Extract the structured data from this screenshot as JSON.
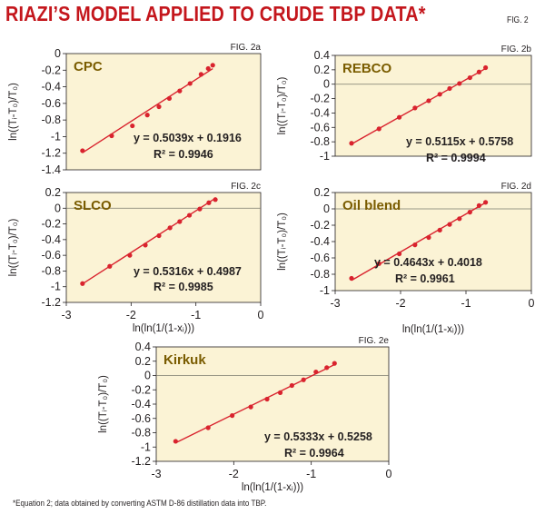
{
  "header": {
    "title": "RIAZI’S MODEL APPLIED TO CRUDE TBP DATA*",
    "fig_label": "FIG. 2"
  },
  "footnote": "*Equation 2; data obtained by converting ASTM D-86 distillation data into TBP.",
  "colors": {
    "data": "#d9232e",
    "plot_background": "#fbf3d5",
    "zero_line": "#7a7a6c",
    "panel_label": "#7a5c00"
  },
  "chart_data": [
    {
      "type": "scatter",
      "panel_tag": "FIG. 2a",
      "name": "CPC",
      "xlabel": "",
      "ylabel": "ln((Tᵢ-T₀)/T₀)",
      "xlim": [
        -3,
        0
      ],
      "ylim": [
        -1.4,
        0
      ],
      "yticks": [
        -1.4,
        -1.2,
        -1,
        -0.8,
        -0.6,
        -0.4,
        -0.2,
        0
      ],
      "xticks": [],
      "grid": false,
      "equation": "y = 0.5039x + 0.1916",
      "r2": "R² = 0.9946",
      "slope": 0.5039,
      "intercept": 0.1916,
      "x": [
        -2.75,
        -2.3,
        -1.98,
        -1.75,
        -1.57,
        -1.41,
        -1.25,
        -1.09,
        -0.92,
        -0.81,
        -0.74
      ],
      "y": [
        -1.17,
        -0.99,
        -0.87,
        -0.74,
        -0.64,
        -0.54,
        -0.45,
        -0.36,
        -0.25,
        -0.18,
        -0.14
      ]
    },
    {
      "type": "scatter",
      "panel_tag": "FIG. 2b",
      "name": "REBCO",
      "xlabel": "",
      "ylabel": "ln((Tᵢ-T₀)/T₀)",
      "xlim": [
        -3,
        0
      ],
      "ylim": [
        -1,
        0.4
      ],
      "yticks": [
        -1,
        -0.8,
        -0.6,
        -0.4,
        -0.2,
        0,
        0.2,
        0.4
      ],
      "xticks": [],
      "grid": false,
      "equation": "y = 0.5115x + 0.5758",
      "r2": "R² = 0.9994",
      "slope": 0.5115,
      "intercept": 0.5758,
      "x": [
        -2.75,
        -2.33,
        -2.02,
        -1.78,
        -1.57,
        -1.4,
        -1.25,
        -1.1,
        -0.94,
        -0.8,
        -0.7
      ],
      "y": [
        -0.82,
        -0.62,
        -0.46,
        -0.33,
        -0.23,
        -0.14,
        -0.06,
        0.01,
        0.09,
        0.17,
        0.23
      ]
    },
    {
      "type": "scatter",
      "panel_tag": "FIG. 2c",
      "name": "SLCO",
      "xlabel": "ln(ln(1/(1-xᵢ)))",
      "ylabel": "ln((Tᵢ-T₀)/T₀)",
      "xlim": [
        -3,
        0
      ],
      "ylim": [
        -1.2,
        0.2
      ],
      "yticks": [
        -1.2,
        -1,
        -0.8,
        -0.6,
        -0.4,
        -0.2,
        0,
        0.2
      ],
      "xticks": [
        -3,
        -2,
        -1,
        0
      ],
      "grid": false,
      "equation": "y = 0.5316x + 0.4987",
      "r2": "R² = 0.9985",
      "slope": 0.5316,
      "intercept": 0.4987,
      "x": [
        -2.75,
        -2.33,
        -2.02,
        -1.78,
        -1.57,
        -1.4,
        -1.25,
        -1.1,
        -0.94,
        -0.8,
        -0.7
      ],
      "y": [
        -0.96,
        -0.74,
        -0.6,
        -0.47,
        -0.35,
        -0.25,
        -0.17,
        -0.09,
        -0.01,
        0.07,
        0.11
      ]
    },
    {
      "type": "scatter",
      "panel_tag": "FIG. 2d",
      "name": "Oil blend",
      "xlabel": "ln(ln(1/(1-xᵢ)))",
      "ylabel": "ln((Tᵢ-T₀)/T₀)",
      "xlim": [
        -3,
        0
      ],
      "ylim": [
        -1,
        0.2
      ],
      "yticks": [
        -1,
        -0.8,
        -0.6,
        -0.4,
        -0.2,
        0,
        0.2
      ],
      "xticks": [
        -3,
        -2,
        -1,
        0
      ],
      "grid": false,
      "equation": "y = 0.4643x + 0.4018",
      "r2": "R² = 0.9961",
      "slope": 0.4643,
      "intercept": 0.4018,
      "x": [
        -2.75,
        -2.33,
        -2.02,
        -1.78,
        -1.57,
        -1.4,
        -1.25,
        -1.1,
        -0.94,
        -0.8,
        -0.7
      ],
      "y": [
        -0.85,
        -0.67,
        -0.55,
        -0.44,
        -0.35,
        -0.26,
        -0.19,
        -0.12,
        -0.04,
        0.04,
        0.08
      ]
    },
    {
      "type": "scatter",
      "panel_tag": "FIG. 2e",
      "name": "Kirkuk",
      "xlabel": "ln(ln(1/(1-xᵢ)))",
      "ylabel": "ln((Tᵢ-T₀)/T₀)",
      "xlim": [
        -3,
        0
      ],
      "ylim": [
        -1.2,
        0.4
      ],
      "yticks": [
        -1.2,
        -1,
        -0.8,
        -0.6,
        -0.4,
        -0.2,
        0,
        0.2,
        0.4
      ],
      "xticks": [
        -3,
        -2,
        -1,
        0
      ],
      "grid": false,
      "equation": "y = 0.5333x + 0.5258",
      "r2": "R² = 0.9964",
      "slope": 0.5333,
      "intercept": 0.5258,
      "x": [
        -2.75,
        -2.33,
        -2.02,
        -1.78,
        -1.57,
        -1.4,
        -1.25,
        -1.1,
        -0.94,
        -0.8,
        -0.7
      ],
      "y": [
        -0.92,
        -0.73,
        -0.56,
        -0.44,
        -0.33,
        -0.24,
        -0.14,
        -0.06,
        0.05,
        0.11,
        0.17
      ]
    }
  ]
}
